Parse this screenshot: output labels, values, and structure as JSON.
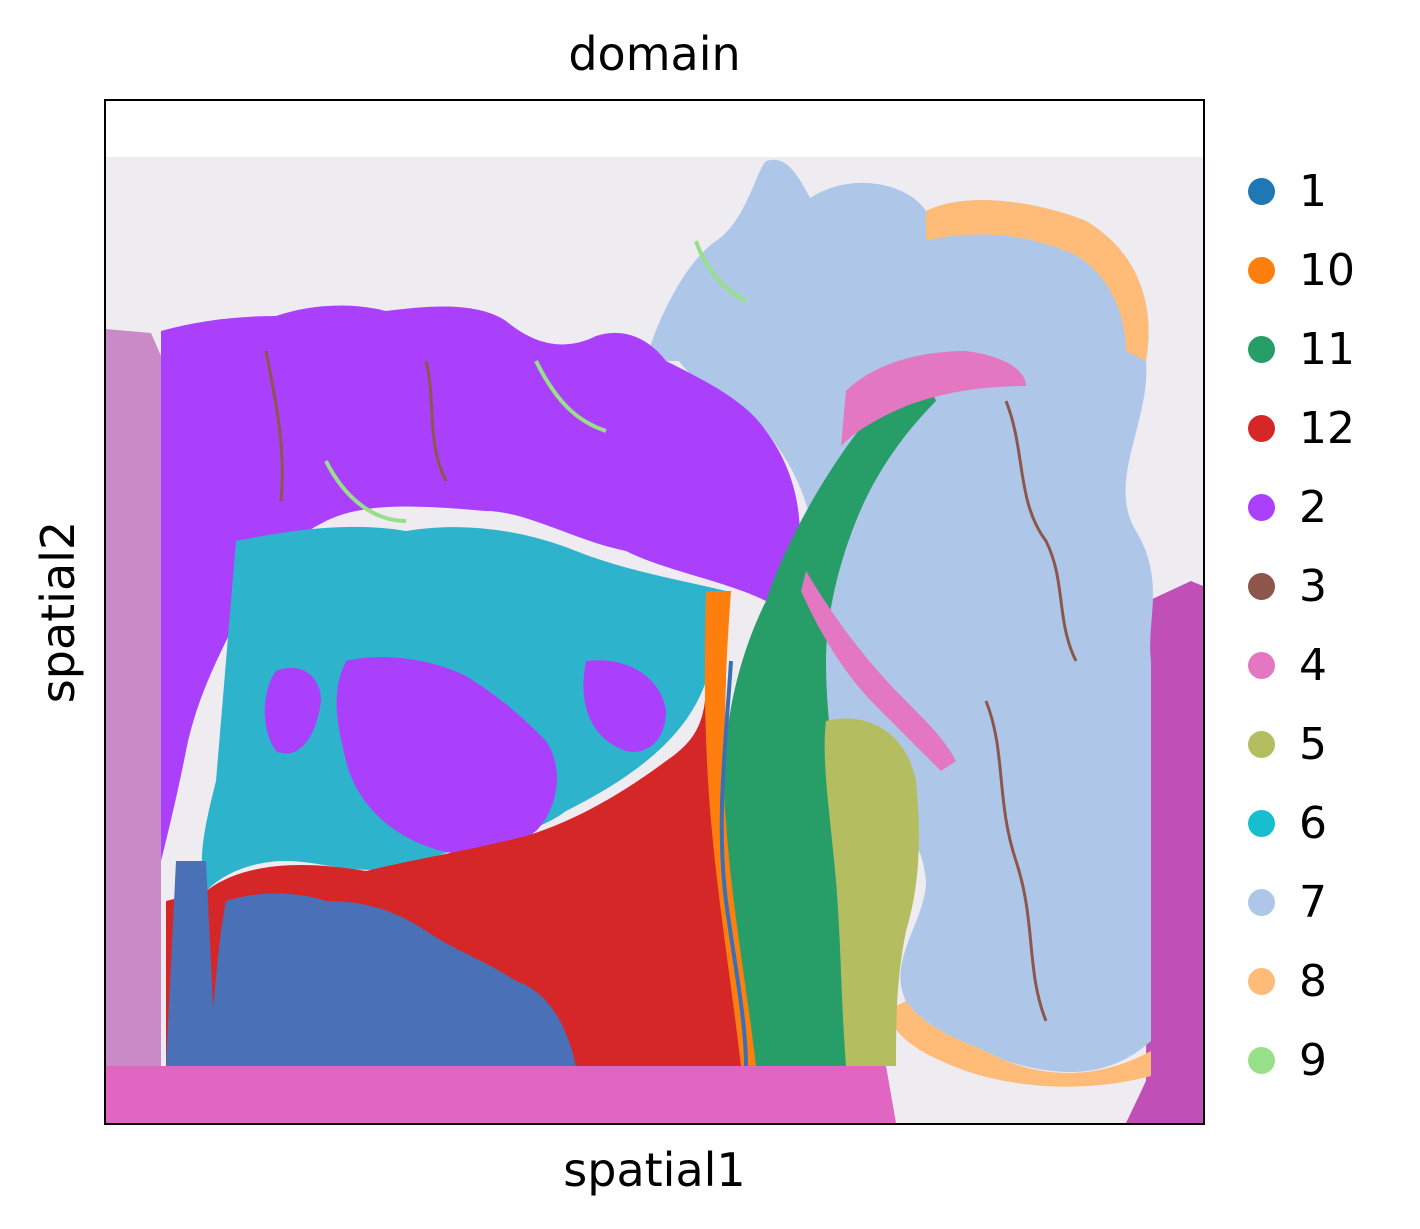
{
  "chart_data": {
    "type": "scatter",
    "title": "domain",
    "xlabel": "spatial1",
    "ylabel": "spatial2",
    "grid": false,
    "axis_ticks": false,
    "background_image": "H&E tissue section",
    "legend_position": "right-outside",
    "series": [
      {
        "name": "1",
        "color": "#1f77b4"
      },
      {
        "name": "10",
        "color": "#ff7f0e"
      },
      {
        "name": "11",
        "color": "#279e68"
      },
      {
        "name": "12",
        "color": "#d62728"
      },
      {
        "name": "2",
        "color": "#aa40fc"
      },
      {
        "name": "3",
        "color": "#8c564b"
      },
      {
        "name": "4",
        "color": "#e377c2"
      },
      {
        "name": "5",
        "color": "#b5bd61"
      },
      {
        "name": "6",
        "color": "#17becf"
      },
      {
        "name": "7",
        "color": "#aec7e8"
      },
      {
        "name": "8",
        "color": "#ffbb78"
      },
      {
        "name": "9",
        "color": "#98df8a"
      }
    ]
  }
}
